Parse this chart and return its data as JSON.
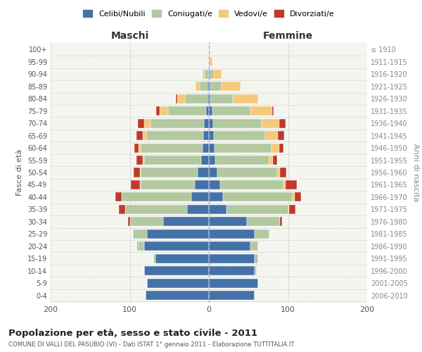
{
  "age_groups": [
    "0-4",
    "5-9",
    "10-14",
    "15-19",
    "20-24",
    "25-29",
    "30-34",
    "35-39",
    "40-44",
    "45-49",
    "50-54",
    "55-59",
    "60-64",
    "65-69",
    "70-74",
    "75-79",
    "80-84",
    "85-89",
    "90-94",
    "95-99",
    "100+"
  ],
  "birth_years": [
    "2006-2010",
    "2001-2005",
    "1996-2000",
    "1991-1995",
    "1986-1990",
    "1981-1985",
    "1976-1980",
    "1971-1975",
    "1966-1970",
    "1961-1965",
    "1956-1960",
    "1951-1955",
    "1946-1950",
    "1941-1945",
    "1936-1940",
    "1931-1935",
    "1926-1930",
    "1921-1925",
    "1916-1920",
    "1911-1915",
    "≤ 1910"
  ],
  "maschi": {
    "celibi": [
      80,
      78,
      82,
      68,
      82,
      78,
      58,
      28,
      22,
      18,
      14,
      10,
      8,
      7,
      6,
      4,
      2,
      2,
      1,
      0,
      0
    ],
    "coniugati": [
      0,
      0,
      0,
      2,
      8,
      18,
      42,
      78,
      88,
      68,
      72,
      72,
      78,
      72,
      68,
      48,
      28,
      10,
      4,
      1,
      0
    ],
    "vedovi": [
      0,
      0,
      0,
      0,
      0,
      0,
      0,
      0,
      0,
      1,
      1,
      2,
      3,
      5,
      8,
      10,
      10,
      5,
      3,
      0,
      0
    ],
    "divorziati": [
      0,
      0,
      0,
      0,
      1,
      0,
      2,
      8,
      8,
      12,
      8,
      8,
      5,
      8,
      8,
      5,
      2,
      0,
      0,
      0,
      0
    ]
  },
  "femmine": {
    "nubili": [
      58,
      62,
      58,
      58,
      52,
      58,
      48,
      22,
      18,
      14,
      11,
      8,
      7,
      6,
      5,
      4,
      2,
      2,
      1,
      0,
      0
    ],
    "coniugate": [
      0,
      0,
      2,
      4,
      10,
      18,
      42,
      78,
      88,
      80,
      75,
      68,
      72,
      65,
      62,
      48,
      28,
      14,
      5,
      1,
      0
    ],
    "vedove": [
      0,
      0,
      0,
      0,
      0,
      0,
      0,
      1,
      2,
      3,
      4,
      5,
      10,
      16,
      22,
      28,
      32,
      24,
      10,
      3,
      1
    ],
    "divorziate": [
      0,
      0,
      0,
      0,
      0,
      0,
      2,
      8,
      8,
      14,
      8,
      5,
      5,
      8,
      8,
      2,
      0,
      0,
      0,
      0,
      0
    ]
  },
  "colors": {
    "celibi": "#4472a8",
    "coniugati": "#b2c9a0",
    "vedovi": "#f5c97a",
    "divorziati": "#c0392b"
  },
  "title": "Popolazione per età, sesso e stato civile - 2011",
  "subtitle": "COMUNE DI VALLI DEL PASUBIO (VI) - Dati ISTAT 1° gennaio 2011 - Elaborazione TUTTITALIA.IT",
  "xlabel_left": "Maschi",
  "xlabel_right": "Femmine",
  "ylabel_left": "Fasce di età",
  "ylabel_right": "Anni di nascita",
  "xlim": 200,
  "background_color": "#f5f5f0",
  "grid_color": "#cccccc"
}
